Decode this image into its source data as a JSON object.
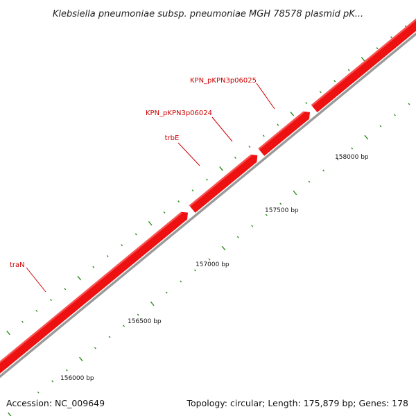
{
  "title": "Klebsiella pneumoniae subsp. pneumoniae MGH 78578 plasmid pK...",
  "footer": {
    "accession": "Accession: NC_009649",
    "summary": "Topology: circular; Length: 175,879 bp; Genes: 178"
  },
  "colors": {
    "gene_fill": "#ee1111",
    "gene_highlight": "#ff8a8a",
    "backbone": "#9a9a9a",
    "tick": "#2e8b1e",
    "label": "#cc0000",
    "text": "#111111"
  },
  "scale": {
    "unit": "bp",
    "major_labels": [
      {
        "position": 156000,
        "text": "156000 bp"
      },
      {
        "position": 156500,
        "text": "156500 bp"
      },
      {
        "position": 157000,
        "text": "157000 bp"
      },
      {
        "position": 157500,
        "text": "157500 bp"
      },
      {
        "position": 158000,
        "text": "158000 bp"
      }
    ]
  },
  "genes": [
    {
      "name": "traN"
    },
    {
      "name": "trbE"
    },
    {
      "name": "KPN_pKPN3p06024"
    },
    {
      "name": "KPN_pKPN3p06025"
    }
  ]
}
